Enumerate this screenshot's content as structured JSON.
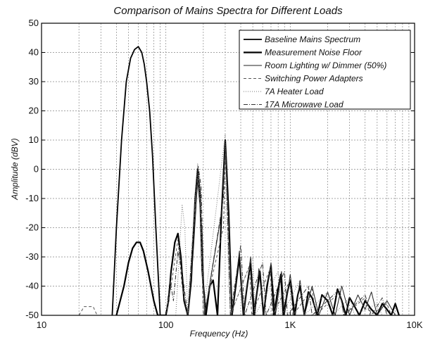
{
  "chart_data": {
    "type": "line",
    "title": "Comparison of Mains Spectra for Different Loads",
    "xlabel": "Frequency (Hz)",
    "ylabel": "Amplitude (dBV)",
    "xscale": "log",
    "xlim": [
      10,
      10000
    ],
    "ylim": [
      -50,
      50
    ],
    "xticks": [
      10,
      100,
      1000,
      10000
    ],
    "xtick_labels": [
      "10",
      "100",
      "1K",
      "10K"
    ],
    "yticks": [
      50,
      40,
      30,
      20,
      10,
      0,
      -10,
      -20,
      -30,
      -40,
      -50
    ],
    "ytick_labels": [
      "50",
      "40",
      "30",
      "20",
      "10",
      "0",
      "-10",
      "-20",
      "-30",
      "-40",
      "-50"
    ],
    "grid": true,
    "legend_position": "top-right",
    "series": [
      {
        "name": "Baseline Mains Spectrum",
        "color": "#000000",
        "stroke_width": 1.8,
        "dash": "",
        "points": [
          [
            37,
            -50
          ],
          [
            40,
            -20
          ],
          [
            44,
            10
          ],
          [
            48,
            30
          ],
          [
            52,
            38
          ],
          [
            56,
            41
          ],
          [
            60,
            42
          ],
          [
            64,
            40
          ],
          [
            67,
            36
          ],
          [
            70,
            30
          ],
          [
            74,
            20
          ],
          [
            78,
            5
          ],
          [
            83,
            -20
          ],
          [
            90,
            -50
          ]
        ]
      },
      {
        "name": "Measurement Noise Floor",
        "color": "#000000",
        "stroke_width": 2.2,
        "dash": "",
        "points": [
          [
            40,
            -50
          ],
          [
            46,
            -40
          ],
          [
            50,
            -32
          ],
          [
            54,
            -27
          ],
          [
            58,
            -25
          ],
          [
            62,
            -25
          ],
          [
            66,
            -28
          ],
          [
            72,
            -35
          ],
          [
            80,
            -45
          ],
          [
            86,
            -50
          ],
          [
            100,
            -50
          ],
          [
            105,
            -45
          ],
          [
            110,
            -35
          ],
          [
            118,
            -25
          ],
          [
            125,
            -22
          ],
          [
            132,
            -30
          ],
          [
            140,
            -45
          ],
          [
            150,
            -50
          ],
          [
            160,
            -38
          ],
          [
            172,
            -10
          ],
          [
            180,
            0
          ],
          [
            188,
            -8
          ],
          [
            196,
            -35
          ],
          [
            210,
            -50
          ],
          [
            225,
            -40
          ],
          [
            240,
            -38
          ],
          [
            260,
            -50
          ],
          [
            280,
            -15
          ],
          [
            300,
            10
          ],
          [
            320,
            -15
          ],
          [
            340,
            -50
          ],
          [
            370,
            -38
          ],
          [
            390,
            -30
          ],
          [
            420,
            -50
          ],
          [
            450,
            -40
          ],
          [
            480,
            -32
          ],
          [
            510,
            -50
          ],
          [
            540,
            -42
          ],
          [
            570,
            -35
          ],
          [
            610,
            -50
          ],
          [
            650,
            -40
          ],
          [
            700,
            -33
          ],
          [
            740,
            -50
          ],
          [
            790,
            -42
          ],
          [
            840,
            -36
          ],
          [
            880,
            -50
          ],
          [
            950,
            -42
          ],
          [
            1000,
            -38
          ],
          [
            1080,
            -50
          ],
          [
            1150,
            -43
          ],
          [
            1200,
            -40
          ],
          [
            1300,
            -50
          ],
          [
            1400,
            -42
          ],
          [
            1500,
            -44
          ],
          [
            1650,
            -50
          ],
          [
            1800,
            -43
          ],
          [
            2000,
            -45
          ],
          [
            2200,
            -50
          ],
          [
            2400,
            -41
          ],
          [
            2600,
            -45
          ],
          [
            2800,
            -50
          ],
          [
            3000,
            -44
          ],
          [
            3300,
            -47
          ],
          [
            3600,
            -50
          ],
          [
            4000,
            -45
          ],
          [
            4500,
            -48
          ],
          [
            5000,
            -50
          ],
          [
            5500,
            -46
          ],
          [
            6000,
            -48
          ],
          [
            6500,
            -50
          ],
          [
            7000,
            -46
          ],
          [
            7500,
            -50
          ]
        ]
      },
      {
        "name": "Room Lighting w/ Dimmer (50%)",
        "color": "#222222",
        "stroke_width": 1.0,
        "dash": "",
        "points": [
          [
            150,
            -50
          ],
          [
            165,
            -30
          ],
          [
            180,
            -4
          ],
          [
            195,
            -20
          ],
          [
            205,
            -50
          ],
          [
            280,
            -15
          ],
          [
            300,
            8
          ],
          [
            320,
            -18
          ],
          [
            340,
            -50
          ],
          [
            390,
            -28
          ],
          [
            420,
            -50
          ],
          [
            480,
            -30
          ],
          [
            520,
            -50
          ],
          [
            560,
            -34
          ],
          [
            610,
            -50
          ],
          [
            700,
            -32
          ],
          [
            760,
            -50
          ],
          [
            850,
            -35
          ],
          [
            900,
            -50
          ],
          [
            1000,
            -36
          ],
          [
            1100,
            -50
          ],
          [
            1200,
            -38
          ],
          [
            1300,
            -50
          ],
          [
            1500,
            -40
          ],
          [
            1700,
            -50
          ],
          [
            2000,
            -42
          ],
          [
            2300,
            -50
          ],
          [
            2600,
            -40
          ],
          [
            3000,
            -50
          ],
          [
            3500,
            -43
          ],
          [
            4000,
            -48
          ],
          [
            4500,
            -42
          ],
          [
            5000,
            -50
          ],
          [
            6000,
            -45
          ],
          [
            7000,
            -50
          ]
        ]
      },
      {
        "name": "Switching Power Adapters",
        "color": "#555555",
        "stroke_width": 1.0,
        "dash": "4,3",
        "points": [
          [
            20,
            -50
          ],
          [
            22,
            -47
          ],
          [
            26,
            -47
          ],
          [
            28,
            -50
          ],
          [
            100,
            -50
          ],
          [
            110,
            -40
          ],
          [
            125,
            -24
          ],
          [
            135,
            -40
          ],
          [
            150,
            -50
          ],
          [
            172,
            -12
          ],
          [
            182,
            -2
          ],
          [
            190,
            -15
          ],
          [
            200,
            -50
          ],
          [
            290,
            -20
          ],
          [
            302,
            6
          ],
          [
            315,
            -20
          ],
          [
            330,
            -50
          ],
          [
            470,
            -33
          ],
          [
            490,
            -50
          ],
          [
            690,
            -34
          ],
          [
            720,
            -50
          ],
          [
            1000,
            -38
          ],
          [
            1050,
            -50
          ],
          [
            1500,
            -41
          ],
          [
            1600,
            -50
          ],
          [
            2500,
            -42
          ],
          [
            2700,
            -50
          ],
          [
            4000,
            -44
          ],
          [
            4400,
            -50
          ],
          [
            6000,
            -46
          ],
          [
            6500,
            -50
          ]
        ]
      },
      {
        "name": "7A Heater Load",
        "color": "#777777",
        "stroke_width": 1.0,
        "dash": "1,2",
        "points": [
          [
            120,
            -50
          ],
          [
            128,
            -30
          ],
          [
            135,
            -12
          ],
          [
            142,
            -20
          ],
          [
            150,
            -50
          ],
          [
            172,
            -8
          ],
          [
            180,
            2
          ],
          [
            190,
            -10
          ],
          [
            200,
            -50
          ],
          [
            300,
            12
          ],
          [
            310,
            -20
          ],
          [
            330,
            -50
          ],
          [
            500,
            -30
          ],
          [
            520,
            -50
          ],
          [
            800,
            -35
          ],
          [
            850,
            -50
          ],
          [
            1200,
            -38
          ],
          [
            1300,
            -50
          ],
          [
            2000,
            -42
          ],
          [
            2200,
            -50
          ],
          [
            3000,
            -44
          ],
          [
            3300,
            -50
          ],
          [
            5000,
            -46
          ],
          [
            5500,
            -50
          ]
        ]
      },
      {
        "name": "17A Microwave Load",
        "color": "#333333",
        "stroke_width": 1.0,
        "dash": "6,2,1,2",
        "points": [
          [
            100,
            -50
          ],
          [
            108,
            -38
          ],
          [
            115,
            -45
          ],
          [
            125,
            -28
          ],
          [
            135,
            -35
          ],
          [
            150,
            -50
          ],
          [
            175,
            -5
          ],
          [
            182,
            1
          ],
          [
            192,
            -6
          ],
          [
            205,
            -50
          ],
          [
            290,
            -10
          ],
          [
            300,
            9
          ],
          [
            312,
            -12
          ],
          [
            330,
            -50
          ],
          [
            400,
            -26
          ],
          [
            430,
            -50
          ],
          [
            600,
            -32
          ],
          [
            640,
            -50
          ],
          [
            900,
            -35
          ],
          [
            950,
            -50
          ],
          [
            1400,
            -40
          ],
          [
            1500,
            -50
          ],
          [
            2500,
            -41
          ],
          [
            2700,
            -50
          ],
          [
            4000,
            -43
          ],
          [
            4500,
            -50
          ],
          [
            5500,
            -44
          ],
          [
            6000,
            -50
          ]
        ]
      }
    ]
  }
}
